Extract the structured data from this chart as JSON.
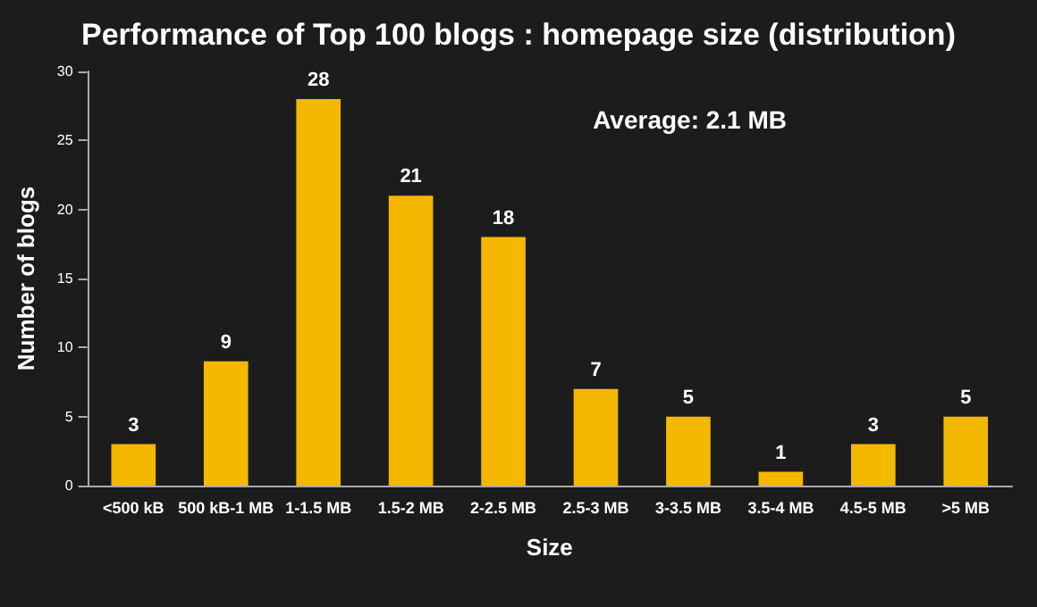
{
  "chart_data": {
    "type": "bar",
    "title": "Performance of Top 100 blogs : homepage size (distribution)",
    "xlabel": "Size",
    "ylabel": "Number of blogs",
    "categories": [
      "<500 kB",
      "500 kB-1 MB",
      "1-1.5 MB",
      "1.5-2 MB",
      "2-2.5 MB",
      "2.5-3 MB",
      "3-3.5 MB",
      "3.5-4 MB",
      "4.5-5 MB",
      ">5 MB"
    ],
    "values": [
      3,
      9,
      28,
      21,
      18,
      7,
      5,
      1,
      3,
      5
    ],
    "color": "#f5b800",
    "ylim": [
      0,
      30
    ],
    "yticks": [
      0,
      5,
      10,
      15,
      20,
      25,
      30
    ],
    "data_labels": true,
    "grid": false,
    "annotations": [
      "Average: 2.1 MB"
    ]
  }
}
